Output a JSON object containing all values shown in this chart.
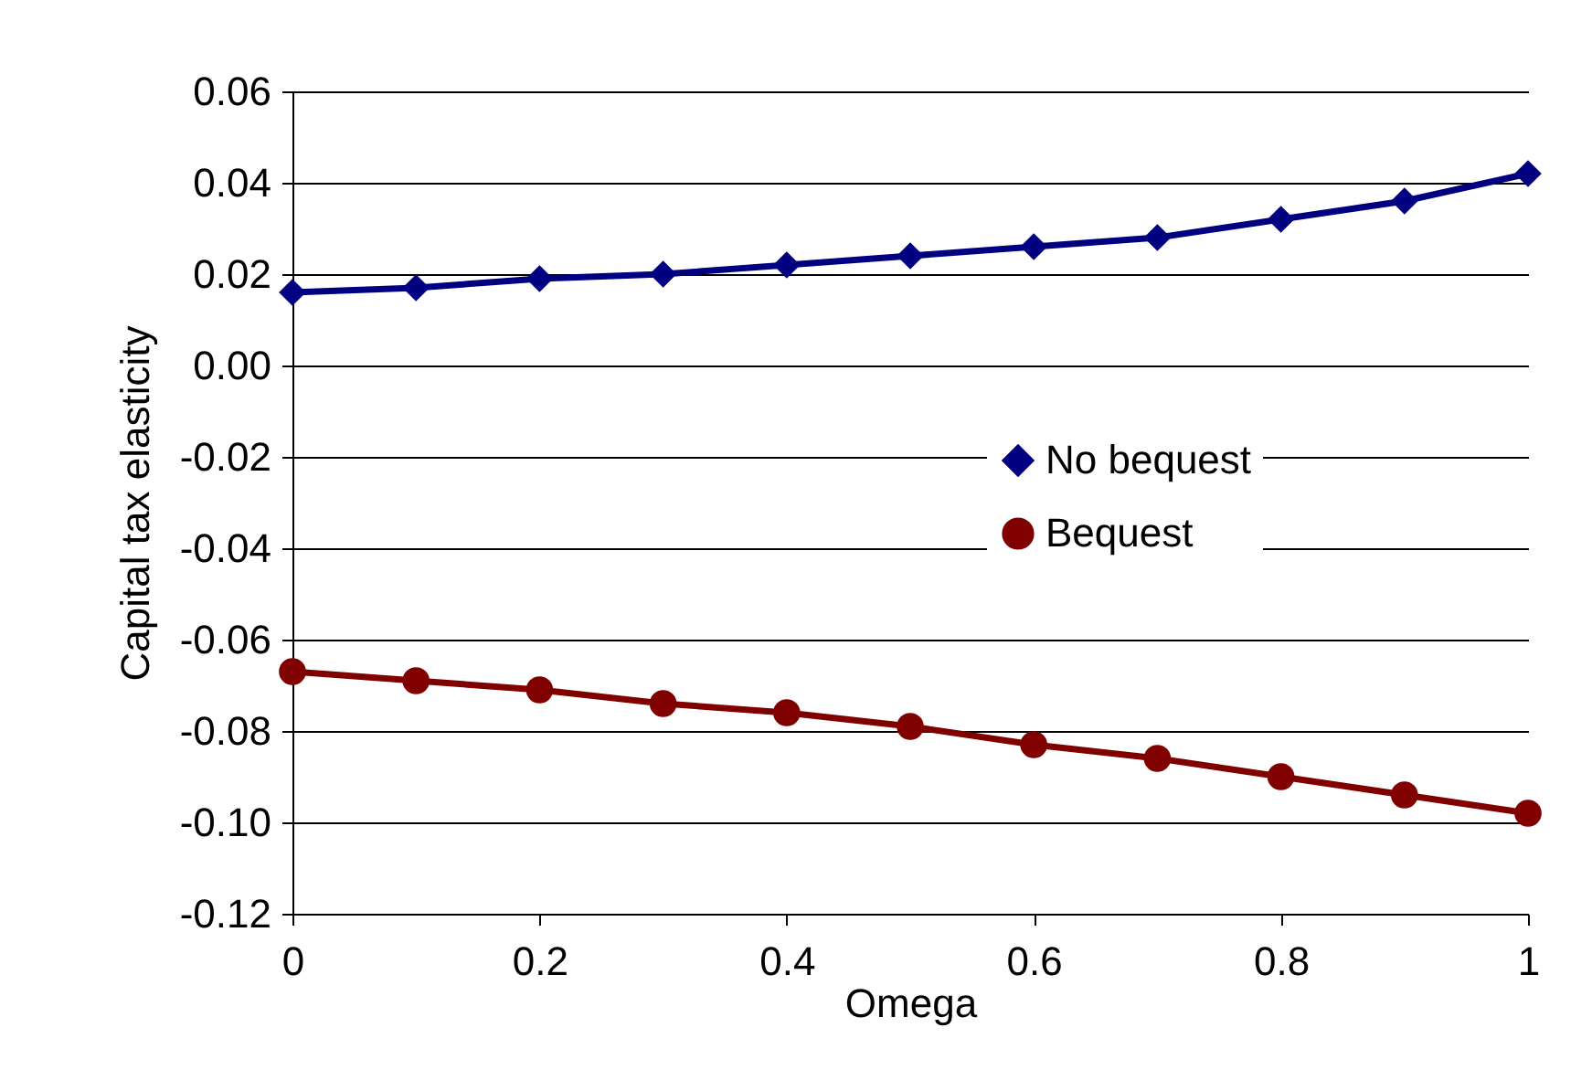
{
  "chart_data": {
    "type": "line",
    "xlabel": "Omega",
    "ylabel": "Capital tax elasticity",
    "x": [
      0,
      0.1,
      0.2,
      0.3,
      0.4,
      0.5,
      0.6,
      0.7,
      0.8,
      0.9,
      1
    ],
    "series": [
      {
        "name": "No bequest",
        "color": "#000080",
        "marker": "diamond",
        "values": [
          0.016,
          0.017,
          0.019,
          0.02,
          0.022,
          0.024,
          0.026,
          0.028,
          0.032,
          0.036,
          0.042
        ]
      },
      {
        "name": "Bequest",
        "color": "#800000",
        "marker": "circle",
        "values": [
          -0.067,
          -0.069,
          -0.071,
          -0.074,
          -0.076,
          -0.079,
          -0.083,
          -0.086,
          -0.09,
          -0.094,
          -0.098
        ]
      }
    ],
    "xlim": [
      0,
      1
    ],
    "xticks": [
      0,
      0.2,
      0.4,
      0.6,
      0.8,
      1
    ],
    "ylim": [
      -0.12,
      0.06
    ],
    "yticks": [
      -0.12,
      {
        "value": -0.1,
        "label": "-0.10"
      },
      -0.08,
      -0.06,
      -0.04,
      -0.02,
      {
        "value": 0,
        "label": "0.00"
      },
      0.02,
      0.04,
      0.06
    ],
    "grid": "y",
    "legend": "right",
    "line_style": "solid"
  }
}
